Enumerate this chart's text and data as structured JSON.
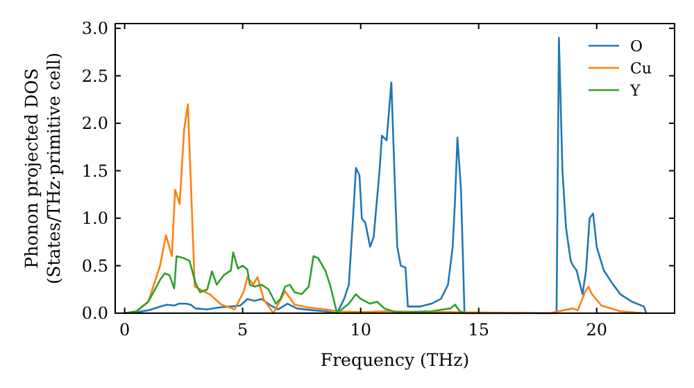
{
  "chart_data": {
    "type": "line",
    "xlabel": "Frequency (THz)",
    "ylabel": "Phonon projected DOS\n(States/THz·primitive cell)",
    "xlim": [
      -0.4,
      23.3
    ],
    "xticks": [
      0,
      5,
      10,
      15,
      20
    ],
    "ylim": [
      0,
      3.05
    ],
    "yticks": [
      {
        "value": 0,
        "label": "0.0"
      },
      {
        "value": 0.5,
        "label": "0.5"
      },
      {
        "value": 1,
        "label": "1.0"
      },
      {
        "value": 1.5,
        "label": "1.5"
      },
      {
        "value": 2,
        "label": "2.0"
      },
      {
        "value": 2.5,
        "label": "2.5"
      },
      {
        "value": 3,
        "label": "3.0"
      }
    ],
    "grid": false,
    "legend": "top right",
    "marker": "none",
    "line_style": "solid",
    "series": [
      {
        "name": "O",
        "color": "#1f77b4",
        "x": [
          0,
          0.5,
          1,
          1.5,
          1.8,
          2.1,
          2.3,
          2.6,
          2.8,
          3,
          3.5,
          4,
          4.5,
          4.9,
          5.2,
          5.5,
          5.8,
          6.2,
          6.5,
          6.9,
          7.3,
          8,
          8.5,
          9,
          9.3,
          9.5,
          9.7,
          9.8,
          9.95,
          10.05,
          10.2,
          10.4,
          10.55,
          10.8,
          10.9,
          11.1,
          11.3,
          11.45,
          11.55,
          11.7,
          11.9,
          12,
          12.5,
          13,
          13.4,
          13.7,
          13.9,
          14,
          14.1,
          14.25,
          14.4,
          15,
          18,
          18.3,
          18.4,
          18.55,
          18.7,
          18.9,
          19,
          19.15,
          19.4,
          19.55,
          19.7,
          19.85,
          20,
          20.3,
          20.7,
          21,
          21.5,
          22,
          22.1
        ],
        "values": [
          0,
          0.01,
          0.03,
          0.07,
          0.09,
          0.08,
          0.1,
          0.1,
          0.09,
          0.05,
          0.04,
          0.06,
          0.07,
          0.08,
          0.15,
          0.13,
          0.15,
          0.08,
          0.04,
          0.1,
          0.05,
          0.03,
          0.02,
          0,
          0.15,
          0.3,
          1.1,
          1.53,
          1.45,
          1,
          0.95,
          0.7,
          0.8,
          1.5,
          1.87,
          1.82,
          2.43,
          1.35,
          0.7,
          0.5,
          0.48,
          0.07,
          0.07,
          0.1,
          0.15,
          0.3,
          0.7,
          1.2,
          1.85,
          1.3,
          0,
          0,
          0,
          0,
          2.9,
          1.5,
          0.9,
          0.55,
          0.5,
          0.45,
          0.2,
          0.45,
          1,
          1.05,
          0.7,
          0.45,
          0.3,
          0.2,
          0.12,
          0.07,
          0
        ]
      },
      {
        "name": "Cu",
        "color": "#ff7f0e",
        "x": [
          0,
          0.5,
          1,
          1.5,
          1.75,
          2,
          2.14,
          2.33,
          2.52,
          2.68,
          2.97,
          3.2,
          3.6,
          4.1,
          4.66,
          5.05,
          5.2,
          5.45,
          5.63,
          5.9,
          6.3,
          6.8,
          7.2,
          7.8,
          8.5,
          9,
          10,
          11,
          14,
          18,
          19,
          19.2,
          19.5,
          19.65,
          19.8,
          20.2,
          21,
          22
        ],
        "values": [
          0,
          0.02,
          0.12,
          0.5,
          0.82,
          0.6,
          1.3,
          1.15,
          1.93,
          2.2,
          0.28,
          0.25,
          0.2,
          0.09,
          0.04,
          0.23,
          0.38,
          0.3,
          0.38,
          0.14,
          0,
          0.23,
          0.09,
          0.06,
          0.04,
          0.02,
          0.01,
          0.02,
          0.01,
          0,
          0.05,
          0.03,
          0.22,
          0.28,
          0.2,
          0.08,
          0.02,
          0
        ]
      },
      {
        "name": "Y",
        "color": "#2ca02c",
        "x": [
          0,
          0.5,
          1,
          1.5,
          1.7,
          1.9,
          2.1,
          2.2,
          2.5,
          2.75,
          3,
          3.2,
          3.5,
          3.7,
          3.9,
          4.2,
          4.5,
          4.6,
          4.8,
          5,
          5.2,
          5.3,
          5.5,
          5.8,
          6.1,
          6.4,
          6.6,
          6.8,
          7,
          7.2,
          7.5,
          7.8,
          8,
          8.2,
          8.5,
          8.7,
          9,
          9.5,
          9.8,
          10,
          10.4,
          10.7,
          11,
          11.5,
          12,
          13,
          13.8,
          14,
          14.2,
          14.4
        ],
        "values": [
          0,
          0.02,
          0.12,
          0.35,
          0.42,
          0.4,
          0.26,
          0.6,
          0.58,
          0.55,
          0.32,
          0.22,
          0.25,
          0.44,
          0.3,
          0.4,
          0.45,
          0.64,
          0.47,
          0.5,
          0.46,
          0.3,
          0.28,
          0.3,
          0.25,
          0.1,
          0.15,
          0.28,
          0.3,
          0.22,
          0.2,
          0.28,
          0.6,
          0.58,
          0.45,
          0.3,
          0,
          0.1,
          0.2,
          0.15,
          0.1,
          0.12,
          0.05,
          0.01,
          0.01,
          0.02,
          0.05,
          0.09,
          0.02,
          0
        ]
      }
    ]
  }
}
